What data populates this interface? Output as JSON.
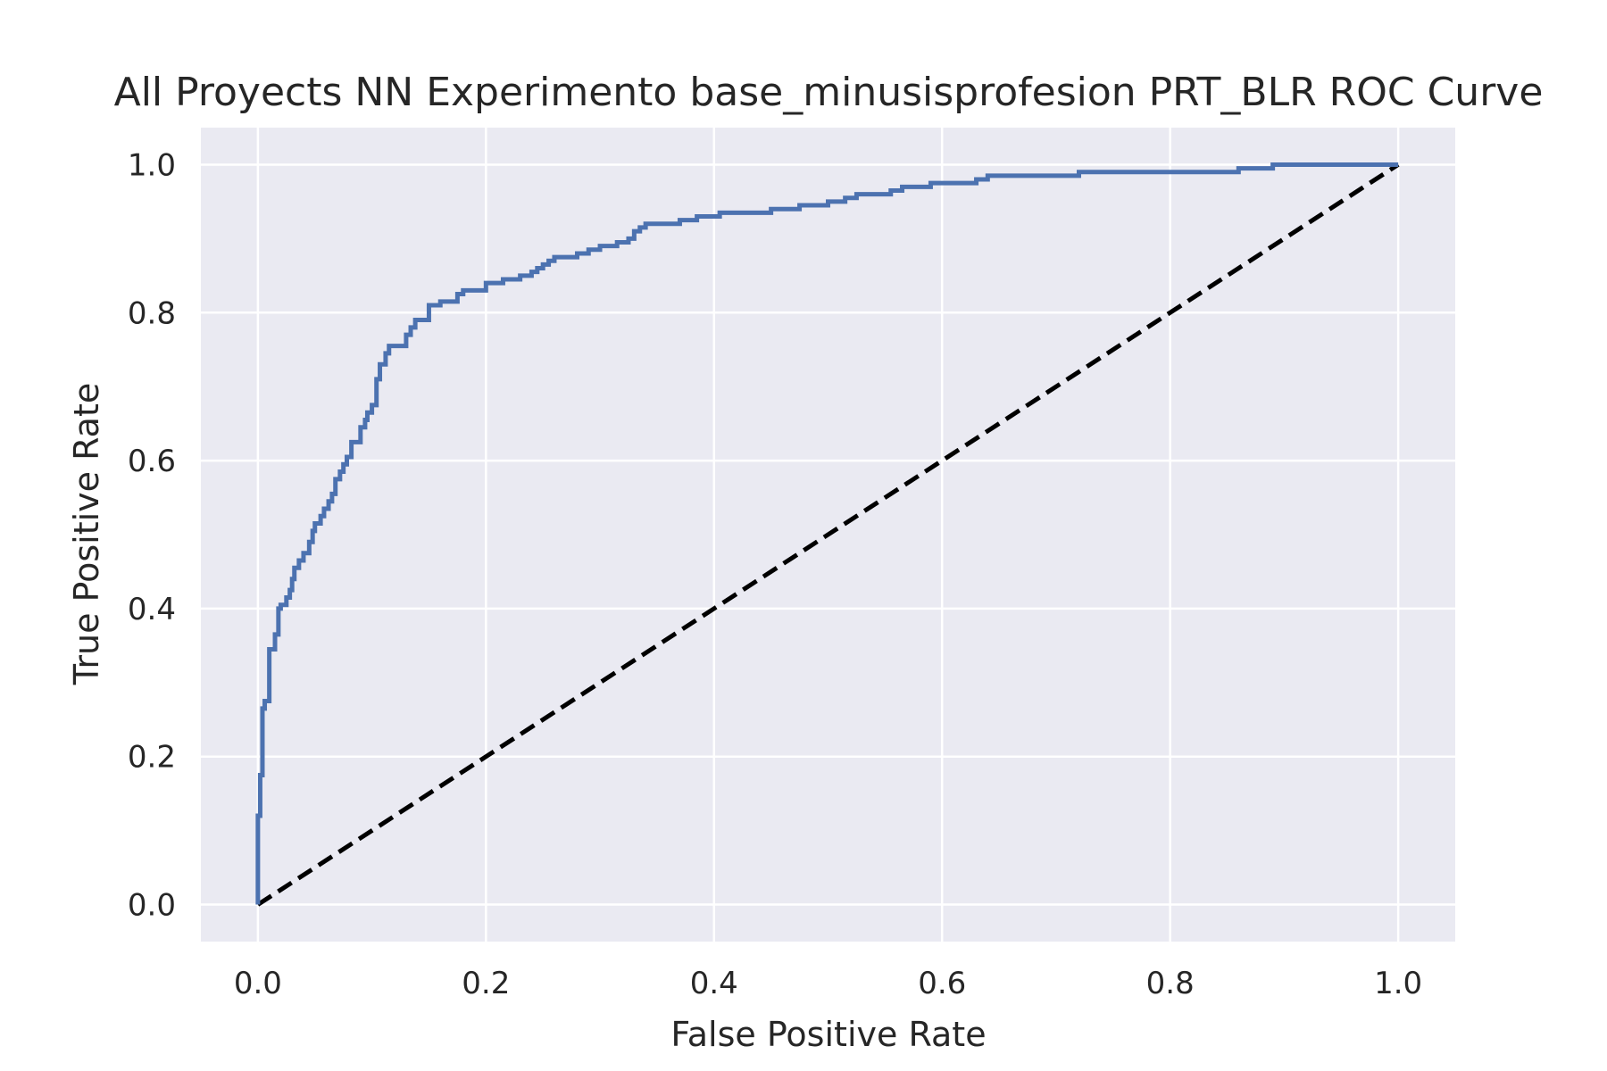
{
  "chart_data": {
    "type": "line",
    "title": "All Proyects NN Experimento base_minusisprofesion PRT_BLR ROC Curve",
    "xlabel": "False Positive Rate",
    "ylabel": "True Positive Rate",
    "xlim": [
      -0.05,
      1.05
    ],
    "ylim": [
      -0.05,
      1.05
    ],
    "xticks": [
      0.0,
      0.2,
      0.4,
      0.6,
      0.8,
      1.0
    ],
    "yticks": [
      0.0,
      0.2,
      0.4,
      0.6,
      0.8,
      1.0
    ],
    "xtick_labels": [
      "0.0",
      "0.2",
      "0.4",
      "0.6",
      "0.8",
      "1.0"
    ],
    "ytick_labels": [
      "0.0",
      "0.2",
      "0.4",
      "0.6",
      "0.8",
      "1.0"
    ],
    "grid": true,
    "background_color": "#EAEAF2",
    "grid_color": "#FFFFFF",
    "series": [
      {
        "style": "solid",
        "color": "#4C72B0",
        "x": [
          0.0,
          0.0,
          0.002,
          0.002,
          0.004,
          0.004,
          0.006,
          0.006,
          0.01,
          0.01,
          0.015,
          0.015,
          0.018,
          0.018,
          0.02,
          0.02,
          0.025,
          0.025,
          0.028,
          0.028,
          0.03,
          0.03,
          0.032,
          0.032,
          0.036,
          0.036,
          0.04,
          0.04,
          0.045,
          0.045,
          0.048,
          0.048,
          0.05,
          0.05,
          0.055,
          0.055,
          0.058,
          0.058,
          0.062,
          0.062,
          0.065,
          0.065,
          0.068,
          0.068,
          0.072,
          0.072,
          0.075,
          0.075,
          0.078,
          0.078,
          0.082,
          0.082,
          0.09,
          0.09,
          0.094,
          0.094,
          0.096,
          0.096,
          0.1,
          0.1,
          0.104,
          0.104,
          0.107,
          0.107,
          0.112,
          0.112,
          0.115,
          0.115,
          0.13,
          0.13,
          0.134,
          0.134,
          0.138,
          0.138,
          0.15,
          0.15,
          0.16,
          0.16,
          0.175,
          0.175,
          0.18,
          0.18,
          0.2,
          0.2,
          0.215,
          0.215,
          0.23,
          0.23,
          0.24,
          0.24,
          0.245,
          0.245,
          0.25,
          0.25,
          0.255,
          0.255,
          0.26,
          0.26,
          0.28,
          0.28,
          0.29,
          0.29,
          0.3,
          0.3,
          0.315,
          0.315,
          0.325,
          0.325,
          0.33,
          0.33,
          0.335,
          0.335,
          0.34,
          0.34,
          0.37,
          0.37,
          0.385,
          0.385,
          0.405,
          0.405,
          0.45,
          0.45,
          0.475,
          0.475,
          0.5,
          0.5,
          0.515,
          0.515,
          0.525,
          0.525,
          0.555,
          0.555,
          0.565,
          0.565,
          0.59,
          0.59,
          0.63,
          0.63,
          0.64,
          0.64,
          0.72,
          0.72,
          0.86,
          0.86,
          0.89,
          0.89,
          1.0
        ],
        "y": [
          0.0,
          0.12,
          0.12,
          0.175,
          0.175,
          0.265,
          0.265,
          0.275,
          0.275,
          0.345,
          0.345,
          0.365,
          0.365,
          0.4,
          0.4,
          0.405,
          0.405,
          0.415,
          0.415,
          0.425,
          0.425,
          0.44,
          0.44,
          0.455,
          0.455,
          0.465,
          0.465,
          0.475,
          0.475,
          0.49,
          0.49,
          0.505,
          0.505,
          0.515,
          0.515,
          0.525,
          0.525,
          0.535,
          0.535,
          0.545,
          0.545,
          0.555,
          0.555,
          0.575,
          0.575,
          0.585,
          0.585,
          0.595,
          0.595,
          0.605,
          0.605,
          0.625,
          0.625,
          0.645,
          0.645,
          0.655,
          0.655,
          0.665,
          0.665,
          0.675,
          0.675,
          0.71,
          0.71,
          0.73,
          0.73,
          0.745,
          0.745,
          0.755,
          0.755,
          0.77,
          0.77,
          0.78,
          0.78,
          0.79,
          0.79,
          0.81,
          0.81,
          0.815,
          0.815,
          0.825,
          0.825,
          0.83,
          0.83,
          0.84,
          0.84,
          0.845,
          0.845,
          0.85,
          0.85,
          0.855,
          0.855,
          0.86,
          0.86,
          0.865,
          0.865,
          0.87,
          0.87,
          0.875,
          0.875,
          0.88,
          0.88,
          0.885,
          0.885,
          0.89,
          0.89,
          0.895,
          0.895,
          0.9,
          0.9,
          0.91,
          0.91,
          0.915,
          0.915,
          0.92,
          0.92,
          0.925,
          0.925,
          0.93,
          0.93,
          0.935,
          0.935,
          0.94,
          0.94,
          0.945,
          0.945,
          0.95,
          0.95,
          0.955,
          0.955,
          0.96,
          0.96,
          0.965,
          0.965,
          0.97,
          0.97,
          0.975,
          0.975,
          0.98,
          0.98,
          0.985,
          0.985,
          0.99,
          0.99,
          0.995,
          0.995,
          1.0,
          1.0
        ]
      },
      {
        "style": "dashed",
        "color": "#000000",
        "x": [
          0.0,
          1.0
        ],
        "y": [
          0.0,
          1.0
        ]
      }
    ]
  }
}
